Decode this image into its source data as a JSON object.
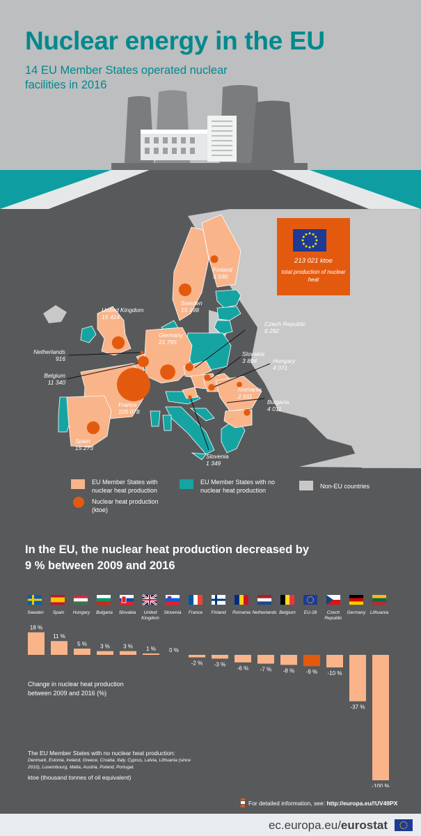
{
  "header": {
    "title": "Nuclear energy in the EU",
    "subtitle": "14 EU Member States operated nuclear facilities in 2016"
  },
  "map": {
    "eu_box": {
      "value": "213 021 ktoe",
      "description": "total production of nuclear heat"
    },
    "countries": [
      {
        "name": "Finland",
        "value": "5 590",
        "ktoe": 5590
      },
      {
        "name": "Sweden",
        "value": "15 198",
        "ktoe": 15198
      },
      {
        "name": "United Kingdom",
        "value": "15 414",
        "ktoe": 15414
      },
      {
        "name": "Czech Republic",
        "value": "6 282",
        "ktoe": 6282
      },
      {
        "name": "Netherlands",
        "value": "916",
        "ktoe": 916
      },
      {
        "name": "Germany",
        "value": "21 795",
        "ktoe": 21795
      },
      {
        "name": "Slovakia",
        "value": "3 894",
        "ktoe": 3894
      },
      {
        "name": "Hungary",
        "value": "4 071",
        "ktoe": 4071
      },
      {
        "name": "Belgium",
        "value": "11 340",
        "ktoe": 11340
      },
      {
        "name": "Romania",
        "value": "2 811",
        "ktoe": 2811
      },
      {
        "name": "France",
        "value": "105 078",
        "ktoe": 105078
      },
      {
        "name": "Bulgaria",
        "value": "4 011",
        "ktoe": 4011
      },
      {
        "name": "Spain",
        "value": "15 273",
        "ktoe": 15273
      },
      {
        "name": "Slovenia",
        "value": "1 349",
        "ktoe": 1349
      }
    ],
    "legend": {
      "eu_with": "EU Member States with nuclear heat production",
      "eu_without": "EU Member States with no nuclear heat production",
      "non_eu": "Non-EU countries",
      "circle": "Nuclear heat production (ktoe)"
    },
    "colors": {
      "eu_with": "#f9b48a",
      "eu_without": "#16a4a3",
      "non_eu": "#c8c8c8",
      "circle": "#e35a0f"
    }
  },
  "section": {
    "title": "In the EU, the nuclear heat production decreased by 9 % between 2009 and 2016"
  },
  "chart_data": {
    "type": "bar",
    "categories": [
      "Sweden",
      "Spain",
      "Hungary",
      "Bulgaria",
      "Slovakia",
      "United Kingdom",
      "Slovenia",
      "France",
      "Finland",
      "Romania",
      "Netherlands",
      "Belgium",
      "EU-28",
      "Czech Republic",
      "Germany",
      "Lithuania"
    ],
    "values": [
      18,
      11,
      5,
      3,
      3,
      1,
      0,
      -2,
      -3,
      -6,
      -7,
      -8,
      -9,
      -10,
      -37,
      -100
    ],
    "labels": [
      "18 %",
      "11 %",
      "5 %",
      "3 %",
      "3 %",
      "1 %",
      "0 %",
      "-2 %",
      "-3 %",
      "-6 %",
      "-7 %",
      "-8 %",
      "-9 %",
      "-10 %",
      "-37 %",
      "-100 %"
    ],
    "highlight": "EU-28",
    "bar_color": "#f9b48a",
    "highlight_color": "#e35a0f",
    "ylabel": "Change in nuclear heat production between 2009 and 2016 (%)",
    "ylim": [
      -100,
      18
    ],
    "grid": false
  },
  "notes": {
    "no_production_title": "The EU Member States with no nuclear heat production:",
    "no_production_list": "Denmark, Estonia, Ireland, Greece, Croatia, Italy, Cyprus, Latvia, Lithuania (since 2010), Luxembourg, Malta, Austria, Poland, Portugal.",
    "unit": "ktoe (thousand tonnes of oil equivalent)",
    "info_prefix": "For detailed information, see:",
    "info_link": "http://europa.eu/!UV49PX"
  },
  "footer": {
    "domain": "ec.europa.eu/",
    "brand": "eurostat"
  }
}
